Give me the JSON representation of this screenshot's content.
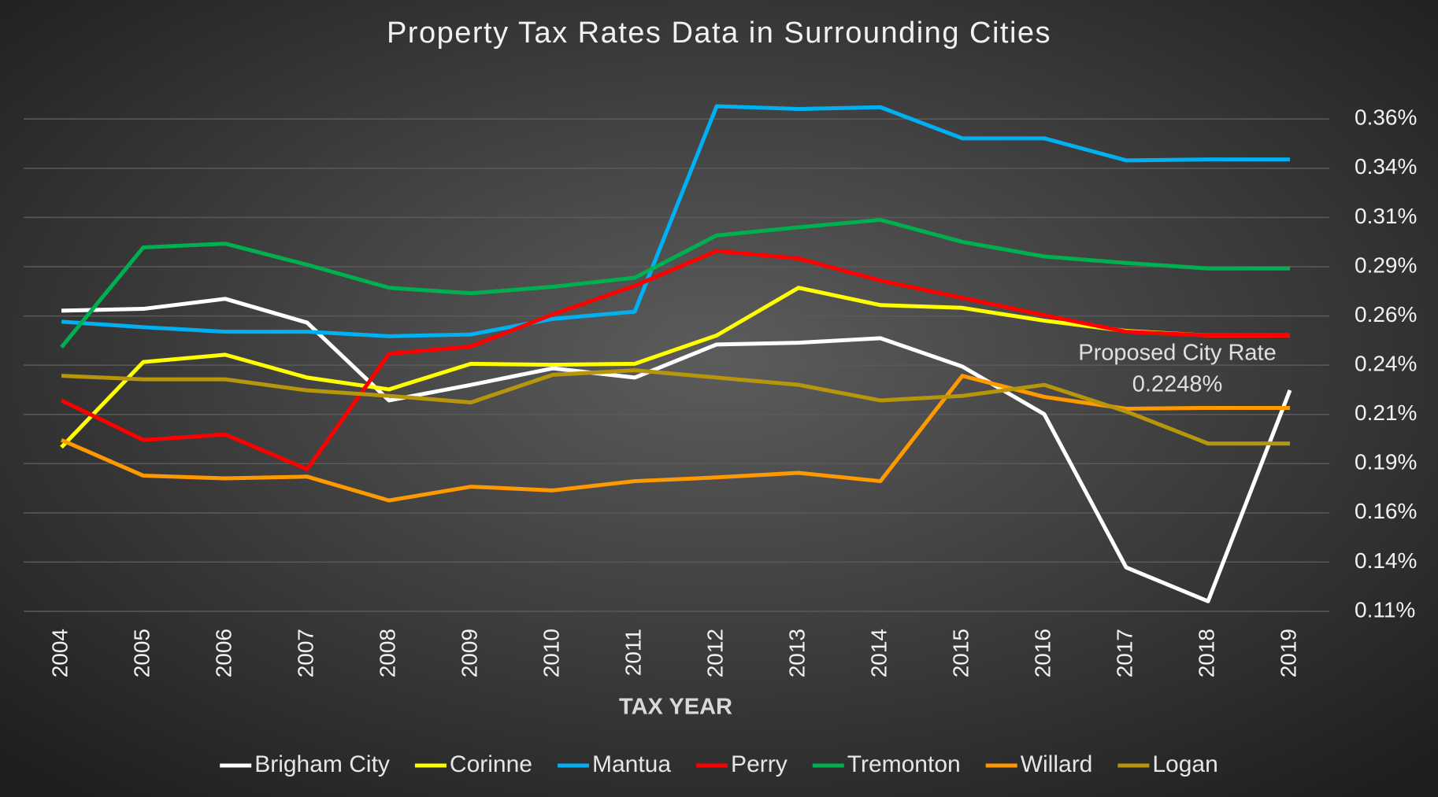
{
  "chart_data": {
    "type": "line",
    "title": "Property Tax Rates Data in Surrounding Cities",
    "x_label": "TAX YEAR",
    "categories": [
      "2004",
      "2005",
      "2006",
      "2007",
      "2008",
      "2009",
      "2010",
      "2011",
      "2012",
      "2013",
      "2014",
      "2015",
      "2016",
      "2017",
      "2018",
      "2019"
    ],
    "series": [
      {
        "name": "Brigham City",
        "color": "#ffffff",
        "values": [
          0.2652,
          0.2661,
          0.2712,
          0.2591,
          0.2196,
          0.2275,
          0.2359,
          0.2312,
          0.248,
          0.2489,
          0.2512,
          0.2368,
          0.2126,
          0.1348,
          0.1176,
          0.2248
        ]
      },
      {
        "name": "Corinne",
        "color": "#ffff00",
        "values": [
          0.1958,
          0.2391,
          0.2428,
          0.2312,
          0.2252,
          0.2382,
          0.2377,
          0.2382,
          0.2526,
          0.2768,
          0.268,
          0.2666,
          0.2601,
          0.2549,
          0.2526,
          0.2526
        ]
      },
      {
        "name": "Mantua",
        "color": "#00b0f0",
        "values": [
          0.2596,
          0.2568,
          0.2545,
          0.2545,
          0.2522,
          0.2531,
          0.261,
          0.2647,
          0.369,
          0.3676,
          0.3685,
          0.3527,
          0.3527,
          0.3415,
          0.342,
          0.342
        ]
      },
      {
        "name": "Perry",
        "color": "#ff0000",
        "values": [
          0.2196,
          0.1995,
          0.2023,
          0.1847,
          0.2433,
          0.247,
          0.2633,
          0.2778,
          0.2955,
          0.2917,
          0.2805,
          0.2717,
          0.2629,
          0.2545,
          0.2526,
          0.2526
        ]
      },
      {
        "name": "Tremonton",
        "color": "#00b050",
        "values": [
          0.2466,
          0.2973,
          0.2992,
          0.2885,
          0.2768,
          0.274,
          0.2773,
          0.2819,
          0.3034,
          0.3075,
          0.3113,
          0.3001,
          0.2927,
          0.2894,
          0.2866,
          0.2866
        ]
      },
      {
        "name": "Willard",
        "color": "#ff9900",
        "values": [
          0.1995,
          0.1814,
          0.18,
          0.1809,
          0.1688,
          0.1758,
          0.1739,
          0.1786,
          0.1805,
          0.1828,
          0.1786,
          0.2321,
          0.2214,
          0.2154,
          0.2158,
          0.2158
        ]
      },
      {
        "name": "Logan",
        "color": "#b8960c",
        "values": [
          0.2321,
          0.2303,
          0.2303,
          0.2247,
          0.2219,
          0.2186,
          0.2326,
          0.2349,
          0.2312,
          0.2275,
          0.2196,
          0.2219,
          0.2275,
          0.214,
          0.1977,
          0.1977
        ]
      }
    ],
    "ylim": [
      0.1125,
      0.375
    ],
    "yticks": [
      {
        "value": 0.1125,
        "label": "0.11%"
      },
      {
        "value": 0.1375,
        "label": "0.14%"
      },
      {
        "value": 0.1625,
        "label": "0.16%"
      },
      {
        "value": 0.1875,
        "label": "0.19%"
      },
      {
        "value": 0.2125,
        "label": "0.21%"
      },
      {
        "value": 0.2375,
        "label": "0.24%"
      },
      {
        "value": 0.2625,
        "label": "0.26%"
      },
      {
        "value": 0.2875,
        "label": "0.29%"
      },
      {
        "value": 0.3125,
        "label": "0.31%"
      },
      {
        "value": 0.3375,
        "label": "0.34%"
      },
      {
        "value": 0.3625,
        "label": "0.36%"
      }
    ],
    "grid": true,
    "legend": "bottom",
    "annotation": [
      "Proposed City Rate",
      "0.2248%"
    ]
  }
}
